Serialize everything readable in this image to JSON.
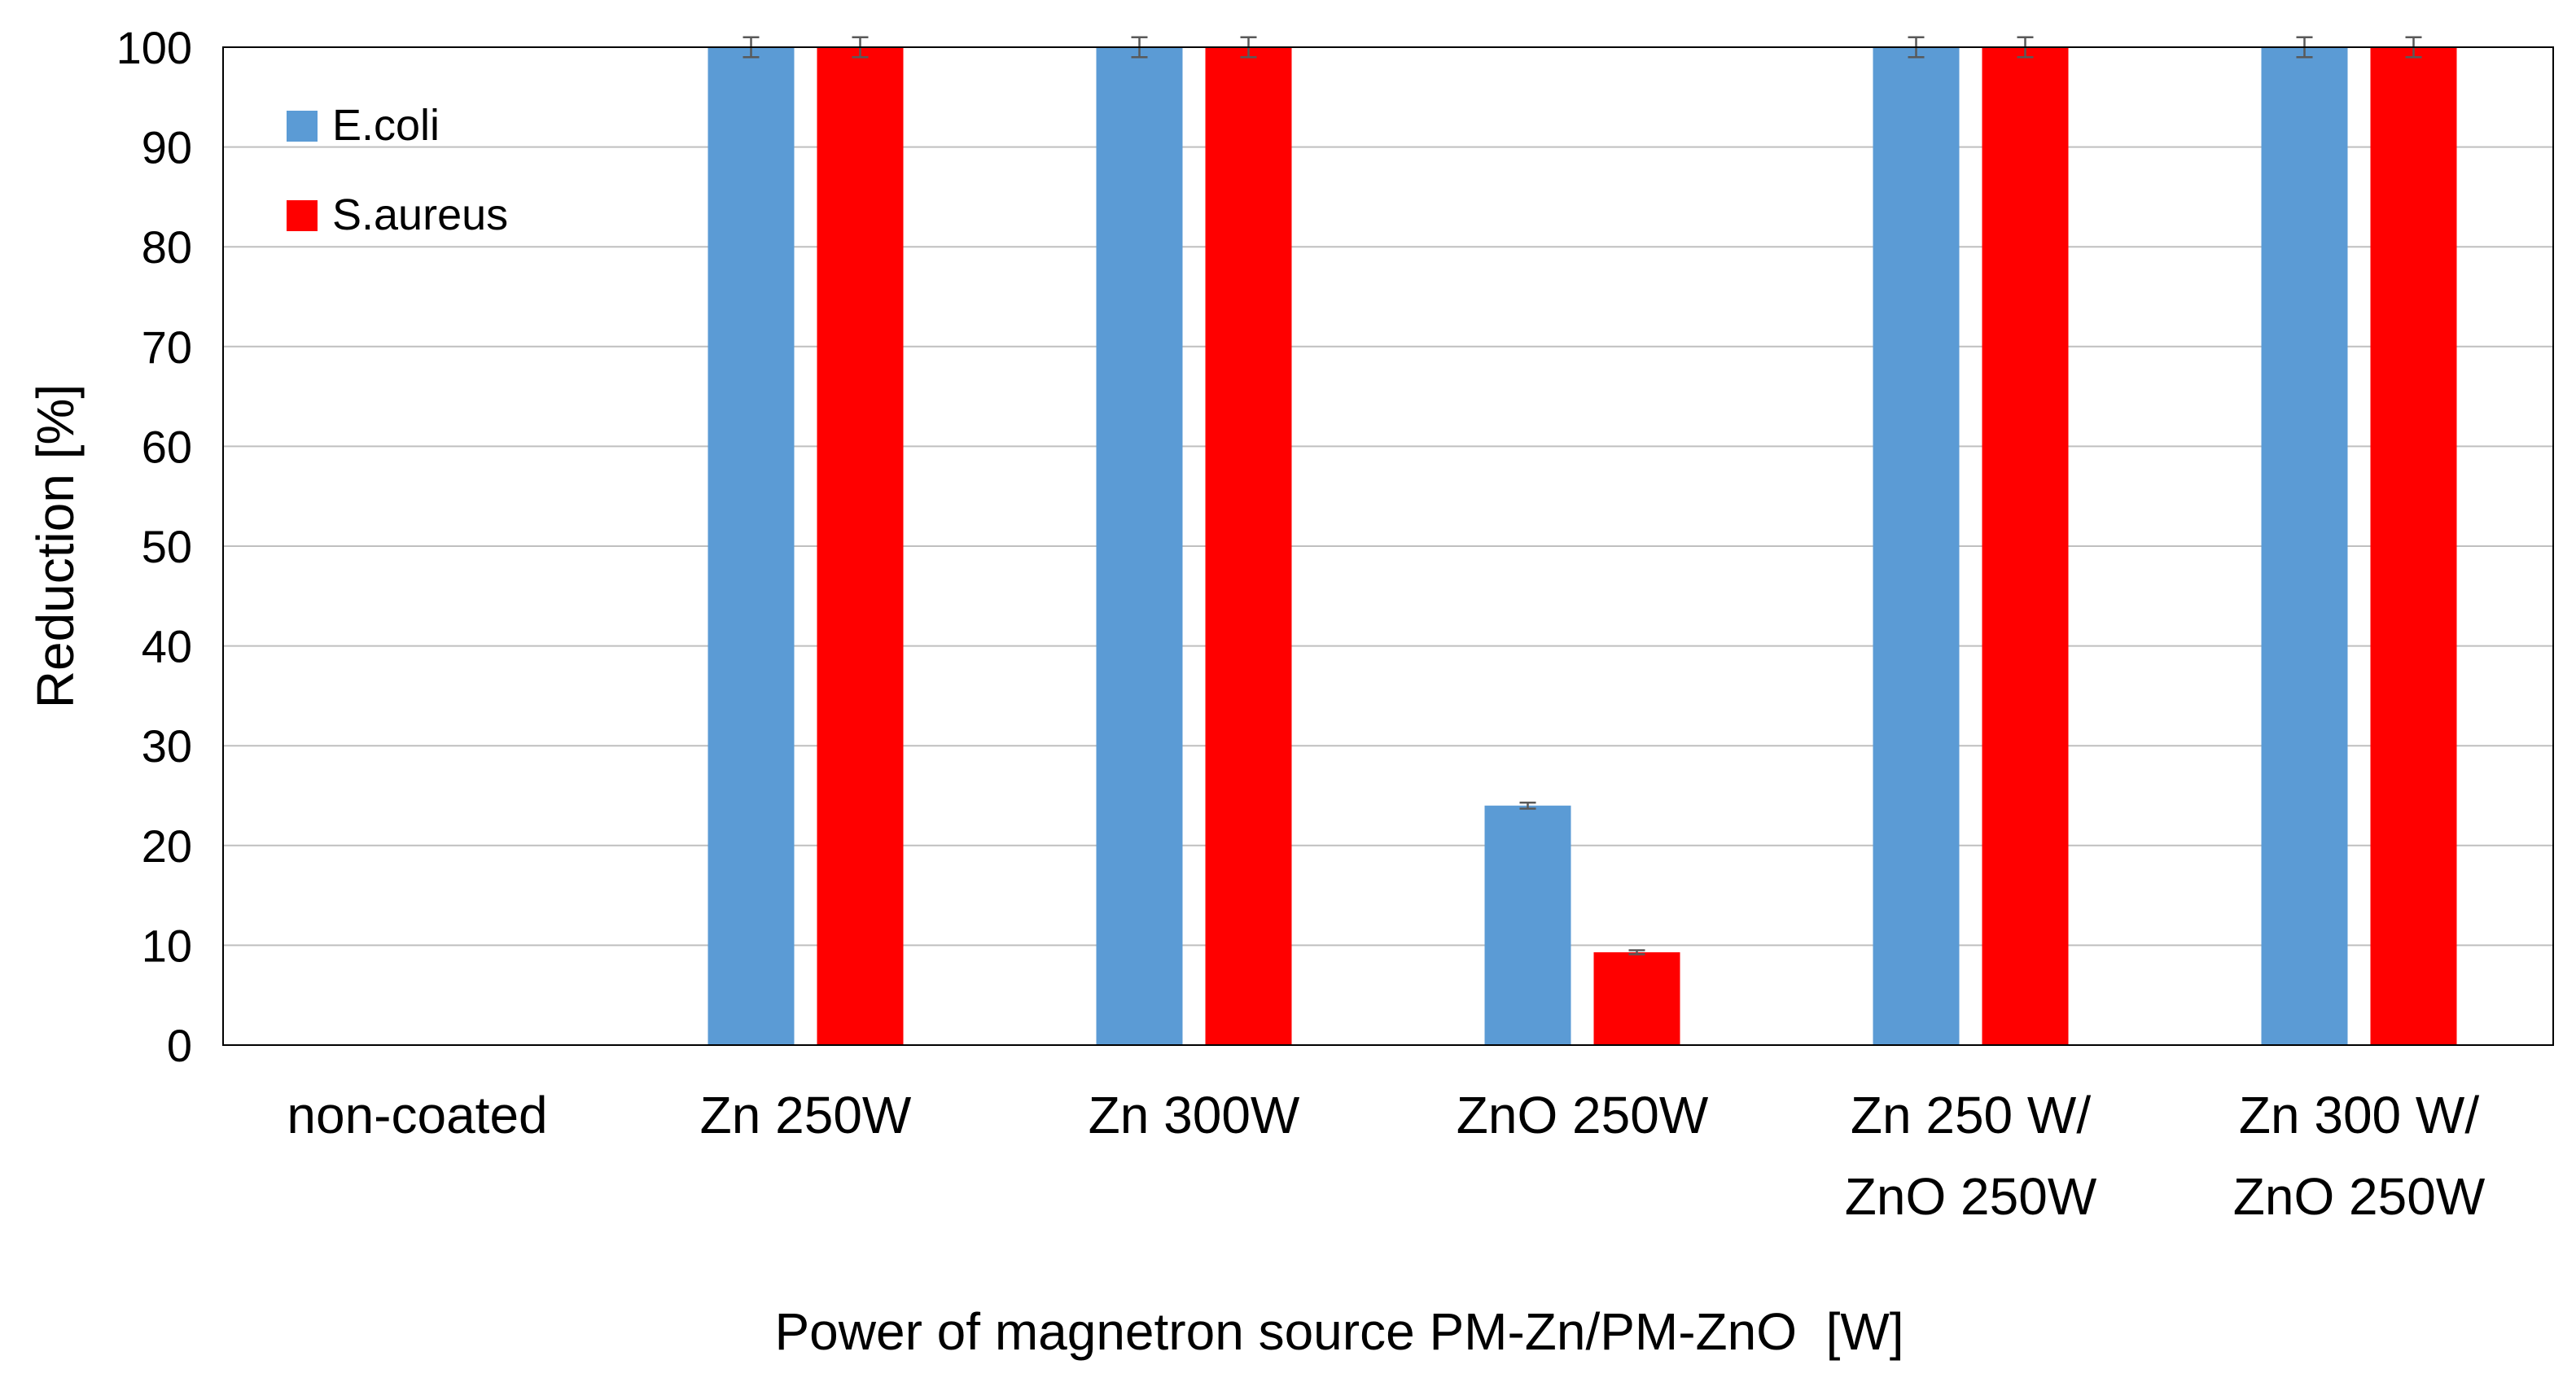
{
  "chart_data": {
    "type": "bar",
    "title": "",
    "xlabel": "Power of magnetron source PM-Zn/PM-ZnO  [W]",
    "ylabel": "Reduction [%]",
    "ylim": [
      0,
      100
    ],
    "yticks": [
      0,
      10,
      20,
      30,
      40,
      50,
      60,
      70,
      80,
      90,
      100
    ],
    "grid": true,
    "legend_position": "top-left",
    "categories": [
      [
        "non-coated"
      ],
      [
        "Zn 250W"
      ],
      [
        "Zn 300W"
      ],
      [
        "ZnO 250W"
      ],
      [
        "Zn 250 W/",
        "ZnO 250W"
      ],
      [
        "Zn 300 W/",
        "ZnO 250W"
      ]
    ],
    "series": [
      {
        "name": "E.coli",
        "color": "#5b9bd5",
        "values": [
          0,
          100,
          100,
          24,
          100,
          100
        ],
        "errors": [
          0,
          1,
          1,
          0.3,
          1,
          1
        ]
      },
      {
        "name": "S.aureus",
        "color": "#ff0000",
        "values": [
          0,
          100,
          100,
          9.3,
          100,
          100
        ],
        "errors": [
          0,
          1,
          1,
          0.2,
          1,
          1
        ]
      }
    ]
  }
}
